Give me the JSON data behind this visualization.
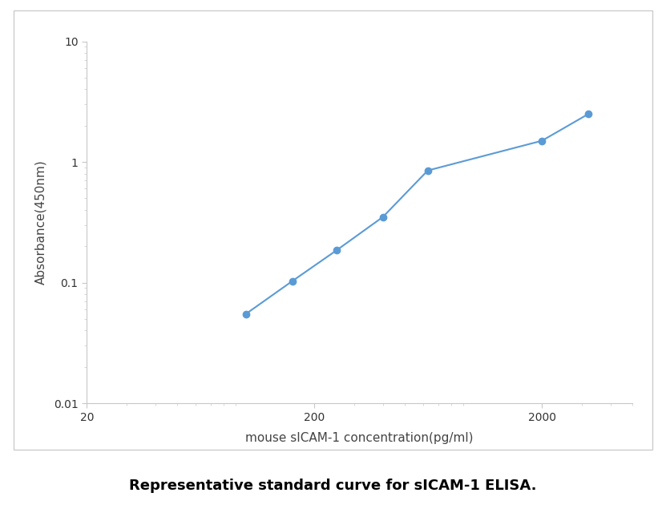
{
  "x_values": [
    100,
    160,
    250,
    400,
    630,
    2000,
    3200
  ],
  "y_values": [
    0.055,
    0.103,
    0.185,
    0.35,
    0.85,
    1.5,
    2.5
  ],
  "line_color": "#5B9BD5",
  "marker_color": "#5B9BD5",
  "marker_size": 6,
  "line_width": 1.5,
  "xlabel": "mouse sICAM-1 concentration(pg/ml)",
  "ylabel": "Absorbance(450nm)",
  "xlim_log": [
    1.3,
    3.7
  ],
  "ylim": [
    0.01,
    10
  ],
  "caption": "Representative standard curve for sICAM-1 ELISA.",
  "caption_fontsize": 13,
  "axis_label_fontsize": 11,
  "tick_fontsize": 10,
  "figure_bgcolor": "#ffffff",
  "plot_bgcolor": "#ffffff",
  "border_color": "#c0c0c0",
  "spine_color": "#c8c8c8"
}
